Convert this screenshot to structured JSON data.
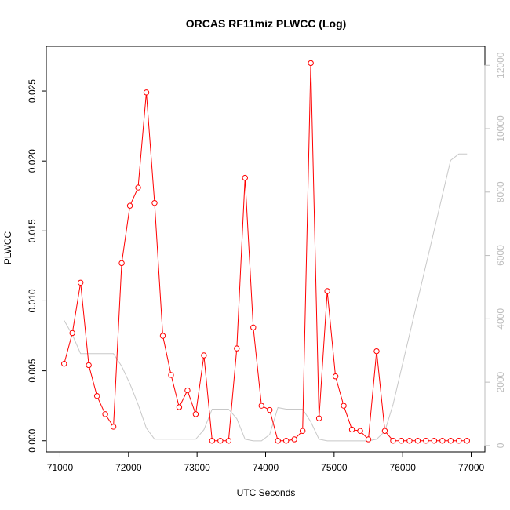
{
  "chart_data": {
    "type": "line",
    "title": "ORCAS RF11miz PLWCC (Log)",
    "xlabel": "UTC Seconds",
    "ylabel": "PLWCC",
    "xlim": [
      70800,
      77200
    ],
    "ylim": [
      -0.0008,
      0.0282
    ],
    "ylim_right": [
      -200,
      12600
    ],
    "x_ticks": [
      71000,
      72000,
      73000,
      74000,
      75000,
      76000,
      77000
    ],
    "x_tick_labels": [
      "71000",
      "72000",
      "73000",
      "74000",
      "75000",
      "76000",
      "77000"
    ],
    "y_ticks": [
      0.0,
      0.005,
      0.01,
      0.015,
      0.02,
      0.025
    ],
    "y_tick_labels": [
      "0.000",
      "0.005",
      "0.010",
      "0.015",
      "0.020",
      "0.025"
    ],
    "y_ticks_right": [
      0,
      2000,
      4000,
      6000,
      8000,
      10000,
      12000
    ],
    "y_tick_labels_right": [
      "0",
      "2000",
      "4000",
      "6000",
      "8000",
      "10000",
      "12000"
    ],
    "grid": false,
    "series": [
      {
        "axis": "left",
        "color": "#ff0000",
        "marker": "open-circle",
        "x": [
          71060,
          71180,
          71300,
          71420,
          71540,
          71660,
          71780,
          71900,
          72020,
          72140,
          72260,
          72380,
          72500,
          72620,
          72740,
          72860,
          72980,
          73100,
          73220,
          73340,
          73460,
          73580,
          73700,
          73820,
          73940,
          74060,
          74180,
          74300,
          74420,
          74540,
          74660,
          74780,
          74900,
          75020,
          75140,
          75260,
          75380,
          75500,
          75620,
          75740,
          75860,
          75980,
          76100,
          76220,
          76340,
          76460,
          76580,
          76700,
          76820,
          76940
        ],
        "y": [
          0.0055,
          0.0077,
          0.0113,
          0.0054,
          0.0032,
          0.0019,
          0.001,
          0.0127,
          0.0168,
          0.0181,
          0.0249,
          0.017,
          0.0075,
          0.0047,
          0.0024,
          0.0036,
          0.0019,
          0.0061,
          0.0,
          0.0,
          0.0,
          0.0066,
          0.0188,
          0.0081,
          0.0025,
          0.0022,
          0.0,
          0.0,
          0.0001,
          0.0007,
          0.027,
          0.0016,
          0.0107,
          0.0046,
          0.0025,
          0.0008,
          0.0007,
          0.0001,
          0.0064,
          0.0007,
          0.0,
          0.0,
          0.0,
          0.0,
          0.0,
          0.0,
          0.0,
          0.0,
          0.0,
          0.0
        ]
      },
      {
        "axis": "right",
        "color": "#c8c8c8",
        "marker": "none",
        "x": [
          71060,
          71180,
          71300,
          71420,
          71540,
          71660,
          71780,
          71900,
          72020,
          72140,
          72260,
          72380,
          72500,
          72620,
          72740,
          72860,
          72980,
          73100,
          73220,
          73340,
          73460,
          73580,
          73700,
          73820,
          73940,
          74060,
          74180,
          74300,
          74420,
          74540,
          74660,
          74780,
          74900,
          75020,
          75140,
          75260,
          75380,
          75500,
          75620,
          75740,
          75860,
          75980,
          76100,
          76220,
          76340,
          76460,
          76580,
          76700,
          76820,
          76940
        ],
        "y": [
          3950,
          3500,
          2900,
          2900,
          2900,
          2900,
          2900,
          2500,
          1950,
          1300,
          550,
          200,
          200,
          200,
          200,
          200,
          200,
          500,
          1150,
          1150,
          1150,
          850,
          200,
          150,
          150,
          350,
          1200,
          1150,
          1150,
          1150,
          750,
          200,
          150,
          150,
          150,
          150,
          150,
          150,
          200,
          450,
          1300,
          2400,
          3500,
          4600,
          5700,
          6800,
          7900,
          9000,
          9200,
          9200
        ]
      }
    ]
  }
}
